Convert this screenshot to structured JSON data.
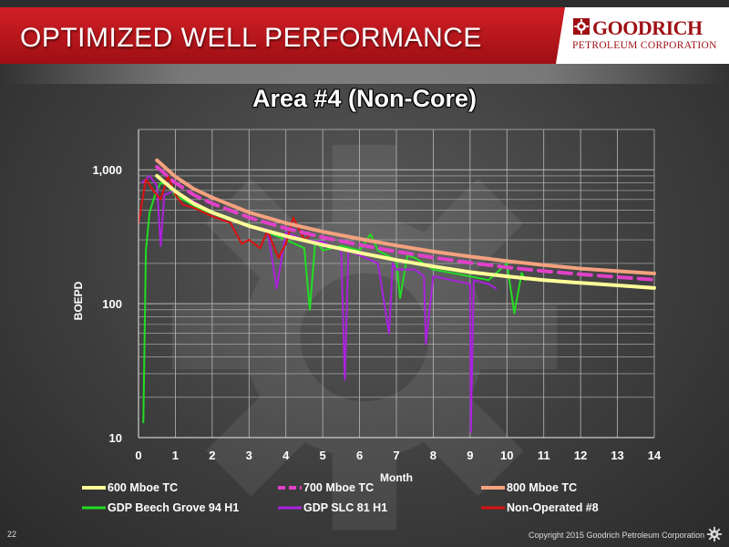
{
  "header": {
    "title": "OPTIMIZED WELL PERFORMANCE",
    "logo_name": "GOODRICH",
    "logo_sub": "PETROLEUM CORPORATION"
  },
  "footer": {
    "page_number": "22",
    "copyright": "Copyright 2015 Goodrich Petroleum Corporation"
  },
  "colors": {
    "header_red": "#b5161c",
    "tc600": "#ffff99",
    "tc700": "#e040c8",
    "tc800": "#f4a27f",
    "beech_grove": "#22dd22",
    "slc81": "#aa22dd",
    "nonop8": "#dd1111"
  },
  "chart_data": {
    "type": "line",
    "title": "Area #4 (Non-Core)",
    "xlabel": "Month",
    "ylabel": "BOEPD",
    "xlim": [
      0,
      14
    ],
    "ylim": [
      10,
      2000
    ],
    "y_scale": "log",
    "x_ticks": [
      "0",
      "1",
      "2",
      "3",
      "4",
      "5",
      "6",
      "7",
      "8",
      "9",
      "10",
      "11",
      "12",
      "13",
      "14"
    ],
    "y_ticks": [
      {
        "value": 10,
        "label": "10"
      },
      {
        "value": 100,
        "label": "100"
      },
      {
        "value": 1000,
        "label": "1,000"
      }
    ],
    "grid": true,
    "legend_position": "bottom",
    "series": [
      {
        "name": "600 Mboe TC",
        "color": "#ffff99",
        "style": "solid",
        "x": [
          0.5,
          1,
          1.5,
          2,
          3,
          4,
          5,
          6,
          7,
          8,
          9,
          10,
          11,
          12,
          13,
          14
        ],
        "y": [
          900,
          690,
          560,
          480,
          380,
          320,
          275,
          240,
          212,
          190,
          172,
          160,
          150,
          143,
          137,
          131
        ]
      },
      {
        "name": "700 Mboe TC",
        "color": "#e040c8",
        "style": "dashed",
        "x": [
          0.5,
          1,
          1.5,
          2,
          3,
          4,
          5,
          6,
          7,
          8,
          9,
          10,
          11,
          12,
          13,
          14
        ],
        "y": [
          1050,
          800,
          650,
          560,
          440,
          365,
          313,
          275,
          245,
          221,
          202,
          187,
          175,
          166,
          158,
          151
        ]
      },
      {
        "name": "800 Mboe TC",
        "color": "#f4a27f",
        "style": "solid",
        "x": [
          0.5,
          1,
          1.5,
          2,
          3,
          4,
          5,
          6,
          7,
          8,
          9,
          10,
          11,
          12,
          13,
          14
        ],
        "y": [
          1180,
          890,
          720,
          620,
          480,
          400,
          345,
          305,
          272,
          245,
          225,
          208,
          194,
          183,
          175,
          168
        ]
      },
      {
        "name": "GDP Beech Grove 94 H1",
        "color": "#22dd22",
        "style": "solid",
        "x": [
          0.13,
          0.2,
          0.3,
          0.45,
          0.6,
          0.8,
          1,
          1.3,
          1.6,
          2,
          2.5,
          3,
          3.5,
          4,
          4.5,
          4.65,
          4.8,
          5,
          5.5,
          6,
          6.3,
          6.5,
          7,
          7.1,
          7.3,
          7.5,
          8,
          8.5,
          9,
          9.5,
          10,
          10.2,
          10.4,
          10.5
        ],
        "y": [
          13,
          250,
          480,
          650,
          800,
          760,
          640,
          580,
          520,
          470,
          420,
          390,
          340,
          300,
          260,
          90,
          300,
          250,
          270,
          250,
          330,
          250,
          210,
          110,
          230,
          220,
          180,
          170,
          160,
          150,
          200,
          85,
          170,
          150
        ]
      },
      {
        "name": "GDP SLC 81 H1",
        "color": "#aa22dd",
        "style": "solid",
        "x": [
          0.1,
          0.3,
          0.5,
          0.6,
          0.7,
          1,
          1.3,
          1.6,
          2,
          2.5,
          3,
          3.5,
          3.75,
          4,
          4.5,
          5,
          5.5,
          5.6,
          5.7,
          6,
          6.5,
          6.8,
          6.9,
          7,
          7.5,
          7.75,
          7.8,
          8,
          8.5,
          9,
          9.02,
          9.1,
          9.5,
          9.7
        ],
        "y": [
          800,
          900,
          760,
          270,
          650,
          700,
          620,
          560,
          470,
          430,
          380,
          360,
          130,
          340,
          300,
          290,
          250,
          27,
          250,
          230,
          200,
          60,
          200,
          180,
          180,
          160,
          50,
          160,
          150,
          140,
          11,
          150,
          140,
          130
        ]
      },
      {
        "name": "Non-Operated #8",
        "color": "#dd1111",
        "style": "solid",
        "x": [
          0,
          0.2,
          0.4,
          0.6,
          0.8,
          1,
          1.2,
          1.5,
          2,
          2.5,
          2.8,
          3,
          3.3,
          3.5,
          3.8,
          4,
          4.2,
          4.5,
          4.7
        ],
        "y": [
          400,
          850,
          700,
          600,
          900,
          650,
          550,
          520,
          450,
          400,
          280,
          300,
          260,
          350,
          220,
          280,
          440,
          300,
          330
        ]
      }
    ]
  }
}
